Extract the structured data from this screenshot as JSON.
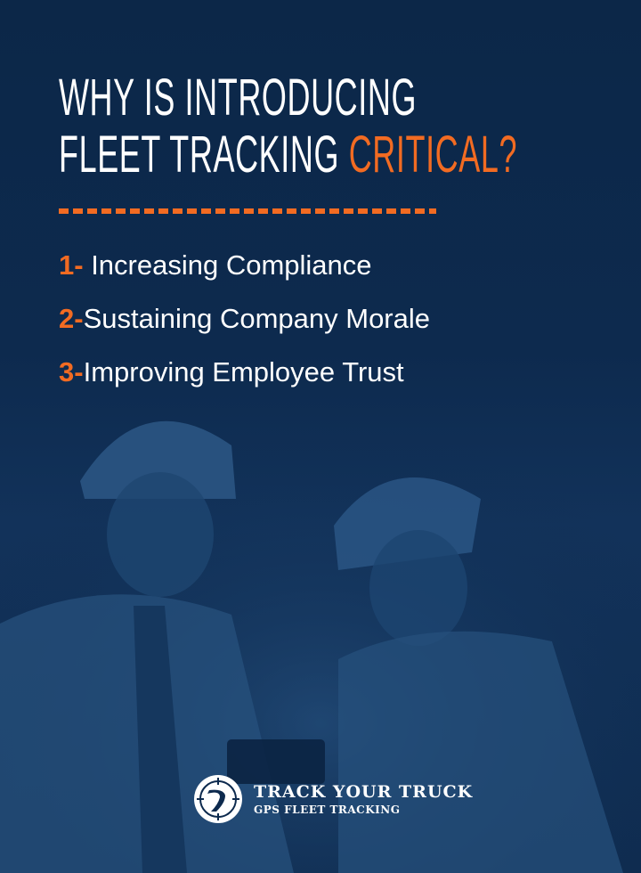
{
  "title": {
    "line1": "WHY IS INTRODUCING",
    "line2_white": "FLEET TRACKING ",
    "line2_accent": "CRITICAL?"
  },
  "list": [
    {
      "number": "1-",
      "text": " Increasing Compliance"
    },
    {
      "number": "2-",
      "text": "Sustaining Company Morale"
    },
    {
      "number": "3-",
      "text": "Improving Employee Trust"
    }
  ],
  "logo": {
    "name": "TRACK YOUR TRUCK",
    "tagline": "GPS FLEET TRACKING",
    "icon": "road-crosshair-icon"
  },
  "colors": {
    "background": "#0d2a4e",
    "accent": "#f26b22",
    "text": "#ffffff"
  }
}
